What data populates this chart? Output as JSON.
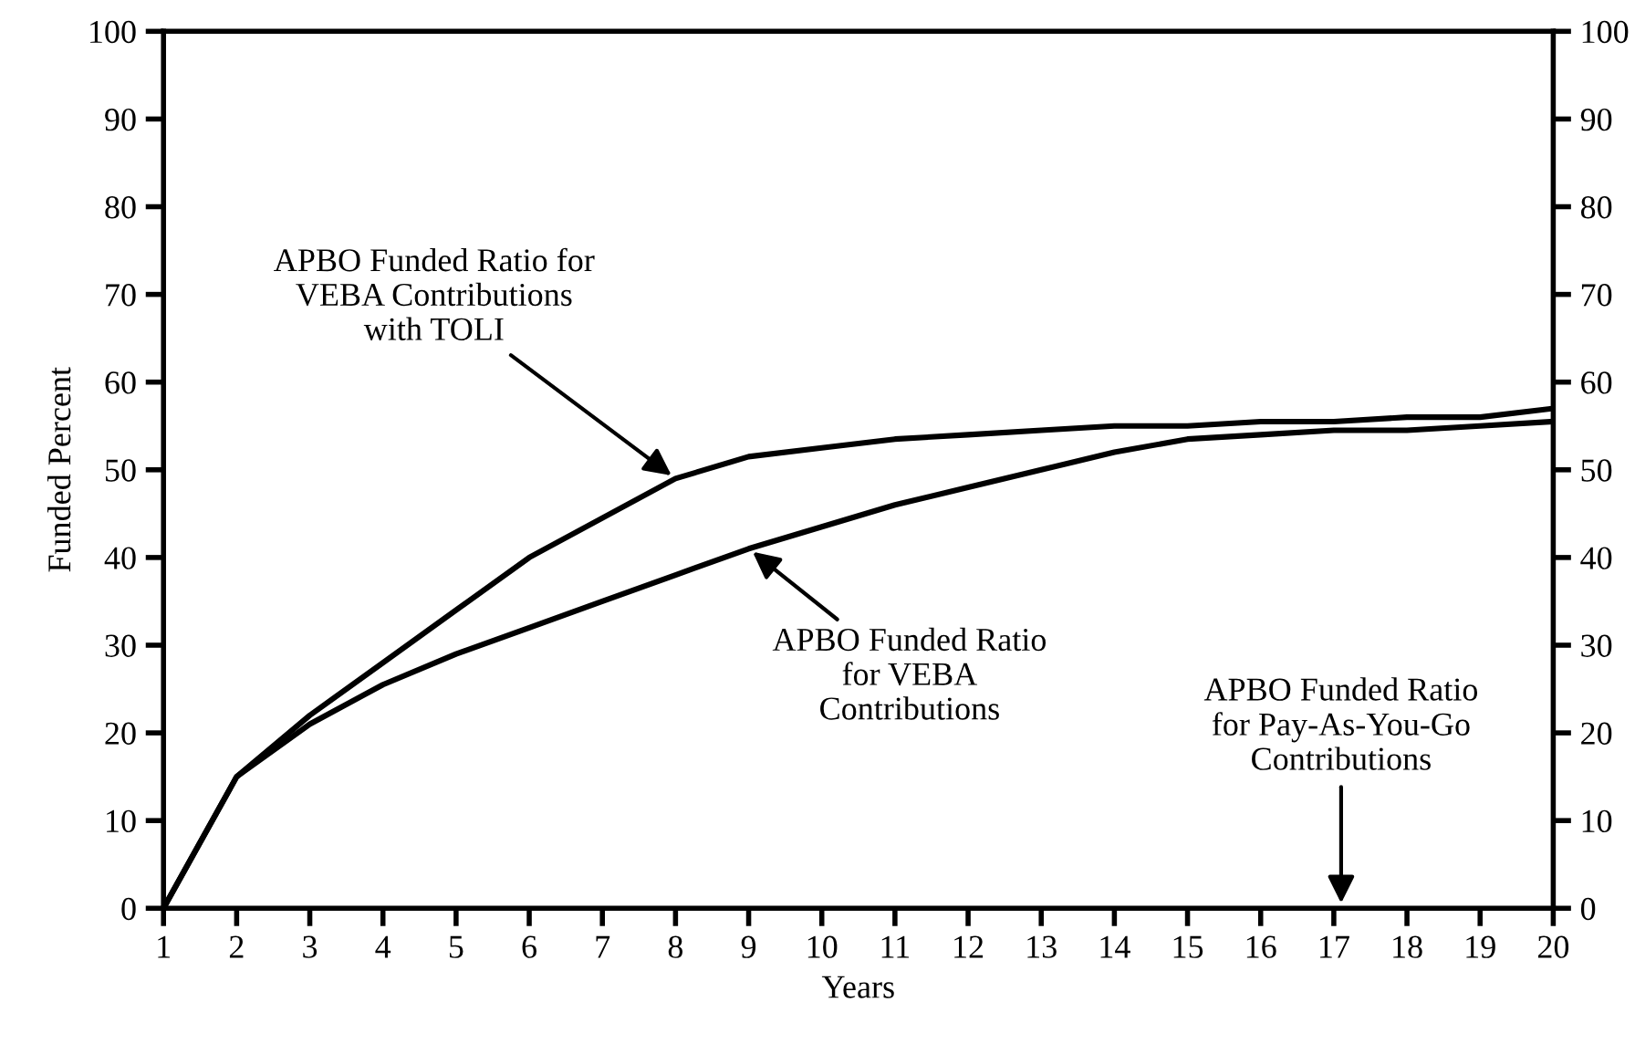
{
  "chart_data": {
    "type": "line",
    "xlabel": "Years",
    "ylabel": "Funded Percent",
    "x": [
      1,
      2,
      3,
      4,
      5,
      6,
      7,
      8,
      9,
      10,
      11,
      12,
      13,
      14,
      15,
      16,
      17,
      18,
      19,
      20
    ],
    "series": [
      {
        "color": "#000000",
        "values": [
          0,
          15,
          22,
          28,
          34,
          40,
          44.5,
          49,
          51.5,
          52.5,
          53.5,
          54,
          54.5,
          55,
          55,
          55.5,
          55.5,
          56,
          56,
          57
        ]
      },
      {
        "color": "#000000",
        "values": [
          0,
          15,
          21,
          25.5,
          29,
          32,
          35,
          38,
          41,
          43.5,
          46,
          48,
          50,
          52,
          53.5,
          54,
          54.5,
          54.5,
          55,
          55.5
        ]
      }
    ],
    "xlim": [
      1,
      20
    ],
    "xticks": [
      1,
      2,
      3,
      4,
      5,
      6,
      7,
      8,
      9,
      10,
      11,
      12,
      13,
      14,
      15,
      16,
      17,
      18,
      19,
      20
    ],
    "ylim": [
      0,
      100
    ],
    "yticks": [
      0,
      10,
      20,
      30,
      40,
      50,
      60,
      70,
      80,
      90,
      100
    ],
    "y2lim": [
      0,
      100
    ],
    "y2ticks": [
      0,
      10,
      20,
      30,
      40,
      50,
      60,
      70,
      80,
      90,
      100
    ],
    "annotations": [
      {
        "text": "APBO Funded Ratio for\nVEBA Contributions\nwith TOLI",
        "x": 8,
        "y": 49
      },
      {
        "text": "APBO Funded Ratio\nfor VEBA\nContributions",
        "x": 9,
        "y": 41
      },
      "APBO Funded Ratio\nfor Pay-As-You-Go\nContributions"
    ],
    "grid": false,
    "legend": false,
    "marker": "none",
    "line_style": "solid"
  }
}
